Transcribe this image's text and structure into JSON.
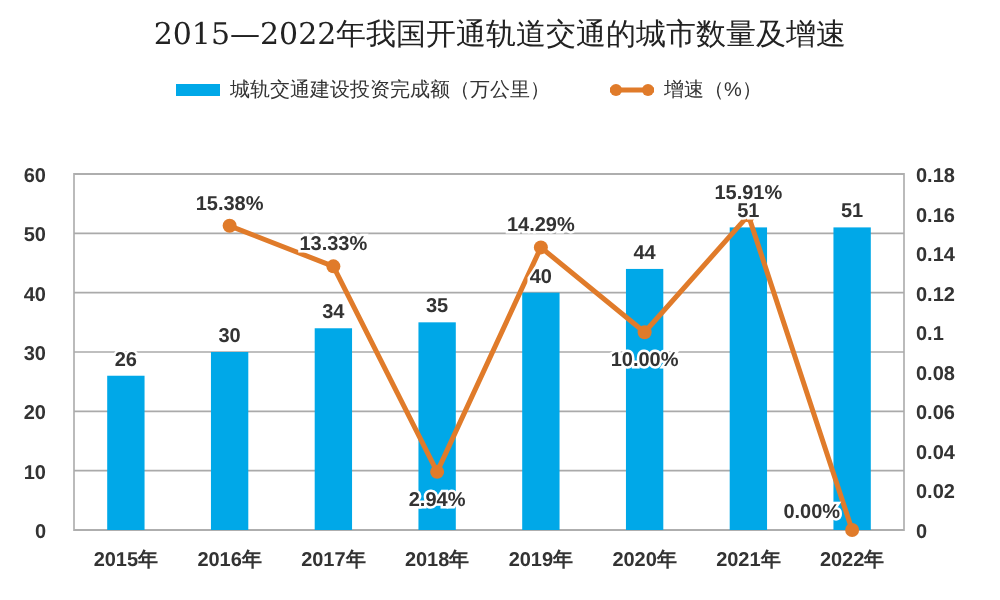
{
  "chart_data": {
    "type": "bar",
    "title": "2015—2022年我国开通轨道交通的城市数量及增速",
    "categories": [
      "2015年",
      "2016年",
      "2017年",
      "2018年",
      "2019年",
      "2020年",
      "2021年",
      "2022年"
    ],
    "series": [
      {
        "name": "城轨交通建设投资完成额（万公里）",
        "color": "#00a8e8",
        "values": [
          26,
          30,
          34,
          35,
          40,
          44,
          51,
          51
        ],
        "data_labels": true
      },
      {
        "name": "增速（%）",
        "type": "line",
        "axis": "y2",
        "color": "#e07b2a",
        "marker": "circle",
        "line_style": "solid",
        "values": [
          0.1538,
          0.1333,
          0.0294,
          0.1429,
          0.1,
          0.1591,
          0.0
        ],
        "x": [
          "2016年",
          "2017年",
          "2018年",
          "2019年",
          "2020年",
          "2021年",
          "2022年"
        ],
        "value_labels": [
          "15.38%",
          "13.33%",
          "2.94%",
          "14.29%",
          "10.00%",
          "15.91%",
          "0.00%"
        ]
      }
    ],
    "ylim": [
      0,
      60
    ],
    "yticks": [
      0,
      10,
      20,
      30,
      40,
      50,
      60
    ],
    "y2lim": [
      0,
      0.18
    ],
    "y2ticks": [
      0,
      0.02,
      0.04,
      0.06,
      0.08,
      {
        "value": 0.1,
        "label": "0.1"
      },
      0.12,
      0.14,
      0.16,
      0.18
    ],
    "grid": "y",
    "legend": "top"
  }
}
